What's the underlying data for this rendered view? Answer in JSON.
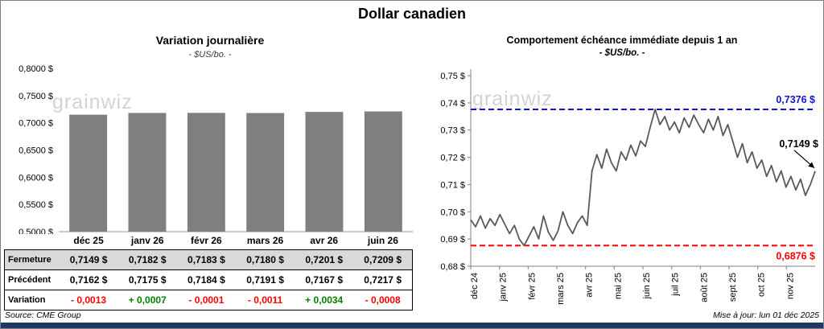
{
  "title": "Dollar canadien",
  "watermark": "grainwiz",
  "chart_data": [
    {
      "type": "bar",
      "title": "Variation journalière",
      "subtitle": "- $US/bo. -",
      "categories": [
        "déc 25",
        "janv 26",
        "févr 26",
        "mars 26",
        "avr 26",
        "juin 26"
      ],
      "values": [
        0.7149,
        0.7182,
        0.7183,
        0.718,
        0.7201,
        0.7209
      ],
      "ylim": [
        0.5,
        0.8
      ],
      "ytick_step": 0.05,
      "ytick_labels": [
        "0,5000 $",
        "0,5500 $",
        "0,6000 $",
        "0,6500 $",
        "0,7000 $",
        "0,7500 $",
        "0,8000 $"
      ],
      "bar_color": "#7f7f7f",
      "table": {
        "rows": [
          {
            "label": "Fermeture",
            "bg": "#d9d9d9",
            "values": [
              "0,7149  $",
              "0,7182  $",
              "0,7183  $",
              "0,7180  $",
              "0,7201  $",
              "0,7209  $"
            ],
            "colors": null
          },
          {
            "label": "Précédent",
            "bg": "#ffffff",
            "values": [
              "0,7162  $",
              "0,7175  $",
              "0,7184  $",
              "0,7191  $",
              "0,7167  $",
              "0,7217  $"
            ],
            "colors": null
          },
          {
            "label": "Variation",
            "bg": "#ffffff",
            "values": [
              "- 0,0013",
              "+ 0,0007",
              "- 0,0001",
              "- 0,0011",
              "+ 0,0034",
              "- 0,0008"
            ],
            "colors": [
              "#ff0000",
              "#008000",
              "#ff0000",
              "#ff0000",
              "#008000",
              "#ff0000"
            ]
          }
        ]
      }
    },
    {
      "type": "line",
      "title": "Comportement échéance immédiate depuis 1 an",
      "subtitle": "- $US/bo. -",
      "x_labels": [
        "déc 24",
        "janv 25",
        "févr 25",
        "mars 25",
        "avr 25",
        "mai 25",
        "juin 25",
        "juil 25",
        "août 25",
        "sept 25",
        "oct 25",
        "nov 25"
      ],
      "values": [
        0.697,
        0.6945,
        0.6985,
        0.694,
        0.6975,
        0.695,
        0.699,
        0.6955,
        0.692,
        0.695,
        0.69,
        0.6876,
        0.691,
        0.6945,
        0.69,
        0.6985,
        0.6925,
        0.6895,
        0.693,
        0.7,
        0.695,
        0.692,
        0.696,
        0.6985,
        0.695,
        0.715,
        0.721,
        0.716,
        0.723,
        0.718,
        0.715,
        0.722,
        0.719,
        0.7245,
        0.7205,
        0.726,
        0.724,
        0.731,
        0.7376,
        0.732,
        0.735,
        0.73,
        0.733,
        0.729,
        0.7345,
        0.731,
        0.7355,
        0.732,
        0.729,
        0.734,
        0.73,
        0.735,
        0.728,
        0.732,
        0.726,
        0.72,
        0.725,
        0.718,
        0.722,
        0.716,
        0.719,
        0.713,
        0.717,
        0.711,
        0.715,
        0.709,
        0.713,
        0.708,
        0.712,
        0.706,
        0.71,
        0.7149
      ],
      "ylim": [
        0.68,
        0.75
      ],
      "ytick_step": 0.01,
      "ytick_labels": [
        "0,68 $",
        "0,69 $",
        "0,70 $",
        "0,71 $",
        "0,72 $",
        "0,73 $",
        "0,74 $",
        "0,75 $"
      ],
      "line_color": "#595959",
      "ref_lines": [
        {
          "value": 0.7376,
          "label": "0,7376 $",
          "color": "#1414cc"
        },
        {
          "value": 0.6876,
          "label": "0,6876 $",
          "color": "#ff0000"
        }
      ],
      "last_point_label": "0,7149 $"
    }
  ],
  "footer": {
    "source": "Source: CME Group",
    "updated": "Mise à jour: lun 01 déc 2025"
  },
  "colors": {
    "bottom_bar": "#1f3864",
    "accent_blue": "#1414cc",
    "accent_red": "#ff0000",
    "positive": "#008000",
    "negative": "#ff0000"
  }
}
